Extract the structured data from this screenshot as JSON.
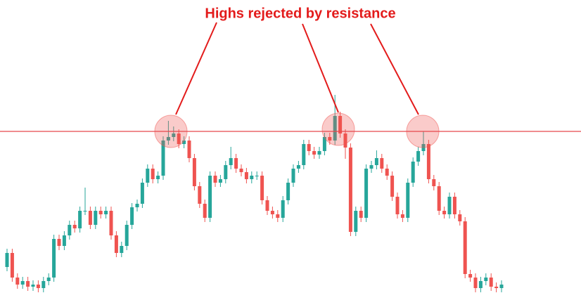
{
  "chart_data": {
    "type": "candlestick",
    "title": "Highs rejected by resistance",
    "up_color": "#26a69a",
    "down_color": "#ef5350",
    "ylim": [
      0,
      417
    ],
    "resistance": {
      "value": 230,
      "color": "#e8474c"
    },
    "open": [
      37,
      57,
      22,
      12,
      17,
      9,
      12,
      7,
      17,
      22,
      77,
      67,
      82,
      97,
      92,
      117,
      117,
      97,
      117,
      112,
      117,
      82,
      57,
      67,
      97,
      122,
      127,
      157,
      177,
      162,
      167,
      217,
      222,
      227,
      212,
      217,
      192,
      152,
      127,
      107,
      167,
      157,
      162,
      182,
      192,
      177,
      172,
      162,
      167,
      167,
      132,
      117,
      112,
      107,
      132,
      157,
      177,
      182,
      212,
      202,
      197,
      202,
      222,
      217,
      252,
      227,
      207,
      87,
      117,
      107,
      177,
      182,
      192,
      177,
      167,
      137,
      112,
      107,
      157,
      187,
      202,
      212,
      162,
      152,
      117,
      112,
      137,
      112,
      102,
      27,
      22,
      7,
      17,
      22,
      9,
      7
    ],
    "high": [
      63,
      63,
      28,
      23,
      23,
      18,
      18,
      23,
      28,
      83,
      83,
      88,
      103,
      103,
      123,
      150,
      123,
      123,
      123,
      123,
      123,
      88,
      73,
      103,
      128,
      133,
      163,
      183,
      183,
      173,
      223,
      245,
      237,
      233,
      223,
      223,
      198,
      158,
      133,
      173,
      173,
      168,
      188,
      208,
      198,
      183,
      178,
      173,
      173,
      173,
      138,
      123,
      118,
      138,
      163,
      183,
      188,
      218,
      218,
      208,
      208,
      228,
      228,
      282,
      258,
      233,
      213,
      123,
      123,
      183,
      188,
      203,
      198,
      183,
      173,
      143,
      118,
      163,
      193,
      208,
      230,
      218,
      168,
      158,
      123,
      143,
      143,
      118,
      108,
      33,
      28,
      23,
      28,
      28,
      15,
      18
    ],
    "low": [
      31,
      16,
      6,
      6,
      3,
      3,
      1,
      1,
      11,
      16,
      61,
      61,
      76,
      86,
      86,
      111,
      91,
      91,
      106,
      106,
      76,
      51,
      51,
      61,
      91,
      116,
      121,
      151,
      156,
      156,
      161,
      211,
      216,
      206,
      206,
      186,
      146,
      121,
      101,
      101,
      151,
      151,
      156,
      176,
      171,
      166,
      156,
      156,
      161,
      126,
      111,
      106,
      101,
      101,
      126,
      151,
      171,
      176,
      196,
      191,
      191,
      196,
      211,
      211,
      221,
      191,
      81,
      81,
      101,
      101,
      171,
      176,
      171,
      161,
      131,
      106,
      101,
      101,
      151,
      181,
      196,
      156,
      146,
      111,
      106,
      106,
      106,
      96,
      21,
      16,
      1,
      1,
      11,
      3,
      1,
      1
    ],
    "close": [
      57,
      22,
      12,
      17,
      9,
      12,
      7,
      17,
      22,
      77,
      67,
      82,
      97,
      92,
      117,
      117,
      97,
      117,
      112,
      117,
      82,
      57,
      67,
      97,
      122,
      127,
      157,
      177,
      162,
      167,
      217,
      222,
      227,
      212,
      217,
      192,
      152,
      127,
      107,
      167,
      157,
      162,
      182,
      192,
      177,
      172,
      162,
      167,
      167,
      132,
      117,
      112,
      107,
      132,
      157,
      177,
      182,
      212,
      202,
      197,
      202,
      222,
      217,
      252,
      227,
      207,
      87,
      117,
      107,
      177,
      182,
      192,
      177,
      167,
      137,
      112,
      107,
      157,
      187,
      202,
      212,
      162,
      152,
      117,
      112,
      137,
      112,
      102,
      27,
      22,
      7,
      17,
      22,
      9,
      7,
      12
    ]
  }
}
